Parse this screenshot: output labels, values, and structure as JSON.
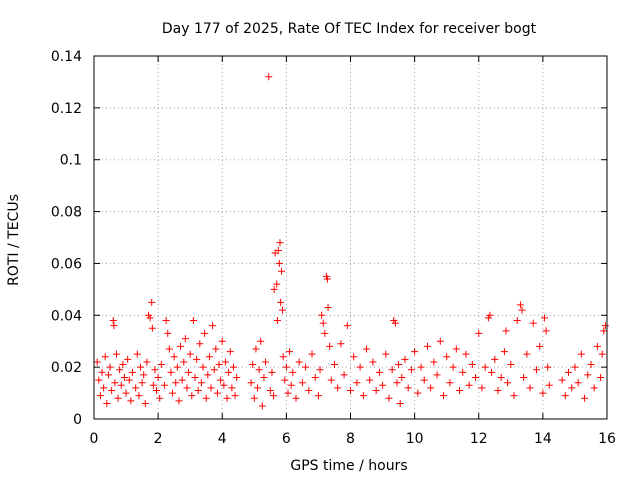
{
  "chart_data": {
    "type": "scatter",
    "title": "Day 177 of 2025, Rate Of TEC Index for receiver bogt",
    "xlabel": "GPS time / hours",
    "ylabel": "ROTI / TECUs",
    "xlim": [
      0,
      16
    ],
    "ylim": [
      0,
      0.14
    ],
    "x_ticks": [
      0,
      2,
      4,
      6,
      8,
      10,
      12,
      14,
      16
    ],
    "x_tick_labels": [
      "0",
      "2",
      "4",
      "6",
      "8",
      "10",
      "12",
      "14",
      "16"
    ],
    "y_ticks": [
      0,
      0.02,
      0.04,
      0.06,
      0.08,
      0.1,
      0.12,
      0.14
    ],
    "y_tick_labels": [
      "0",
      "0.02",
      "0.04",
      "0.06",
      "0.08",
      "0.1",
      "0.12",
      "0.14"
    ],
    "grid": true,
    "marker": "+",
    "color": "#ff0000",
    "series": [
      {
        "name": "ROTI",
        "points": [
          [
            0.1,
            0.022
          ],
          [
            0.15,
            0.015
          ],
          [
            0.2,
            0.009
          ],
          [
            0.25,
            0.018
          ],
          [
            0.3,
            0.012
          ],
          [
            0.35,
            0.024
          ],
          [
            0.4,
            0.006
          ],
          [
            0.45,
            0.017
          ],
          [
            0.5,
            0.02
          ],
          [
            0.55,
            0.011
          ],
          [
            0.6,
            0.038
          ],
          [
            0.62,
            0.036
          ],
          [
            0.65,
            0.014
          ],
          [
            0.7,
            0.025
          ],
          [
            0.75,
            0.008
          ],
          [
            0.8,
            0.019
          ],
          [
            0.85,
            0.013
          ],
          [
            0.9,
            0.021
          ],
          [
            0.95,
            0.016
          ],
          [
            1.0,
            0.01
          ],
          [
            1.05,
            0.023
          ],
          [
            1.1,
            0.015
          ],
          [
            1.15,
            0.007
          ],
          [
            1.2,
            0.018
          ],
          [
            1.3,
            0.012
          ],
          [
            1.35,
            0.025
          ],
          [
            1.4,
            0.009
          ],
          [
            1.45,
            0.02
          ],
          [
            1.5,
            0.014
          ],
          [
            1.55,
            0.017
          ],
          [
            1.6,
            0.006
          ],
          [
            1.65,
            0.022
          ],
          [
            1.7,
            0.04
          ],
          [
            1.75,
            0.039
          ],
          [
            1.8,
            0.045
          ],
          [
            1.82,
            0.035
          ],
          [
            1.85,
            0.013
          ],
          [
            1.9,
            0.019
          ],
          [
            1.95,
            0.011
          ],
          [
            2.0,
            0.016
          ],
          [
            2.05,
            0.008
          ],
          [
            2.1,
            0.021
          ],
          [
            2.2,
            0.013
          ],
          [
            2.25,
            0.038
          ],
          [
            2.3,
            0.033
          ],
          [
            2.35,
            0.027
          ],
          [
            2.4,
            0.018
          ],
          [
            2.45,
            0.01
          ],
          [
            2.5,
            0.024
          ],
          [
            2.55,
            0.014
          ],
          [
            2.6,
            0.02
          ],
          [
            2.65,
            0.007
          ],
          [
            2.7,
            0.028
          ],
          [
            2.75,
            0.015
          ],
          [
            2.8,
            0.022
          ],
          [
            2.85,
            0.031
          ],
          [
            2.9,
            0.012
          ],
          [
            2.95,
            0.018
          ],
          [
            3.0,
            0.025
          ],
          [
            3.05,
            0.009
          ],
          [
            3.1,
            0.038
          ],
          [
            3.15,
            0.016
          ],
          [
            3.2,
            0.023
          ],
          [
            3.25,
            0.011
          ],
          [
            3.3,
            0.029
          ],
          [
            3.35,
            0.014
          ],
          [
            3.4,
            0.02
          ],
          [
            3.45,
            0.033
          ],
          [
            3.5,
            0.008
          ],
          [
            3.55,
            0.017
          ],
          [
            3.6,
            0.024
          ],
          [
            3.65,
            0.012
          ],
          [
            3.7,
            0.036
          ],
          [
            3.75,
            0.019
          ],
          [
            3.8,
            0.027
          ],
          [
            3.85,
            0.01
          ],
          [
            3.9,
            0.021
          ],
          [
            3.95,
            0.015
          ],
          [
            4.0,
            0.03
          ],
          [
            4.05,
            0.013
          ],
          [
            4.1,
            0.022
          ],
          [
            4.15,
            0.008
          ],
          [
            4.2,
            0.018
          ],
          [
            4.25,
            0.026
          ],
          [
            4.3,
            0.012
          ],
          [
            4.35,
            0.02
          ],
          [
            4.4,
            0.009
          ],
          [
            4.45,
            0.016
          ],
          [
            4.9,
            0.014
          ],
          [
            4.95,
            0.021
          ],
          [
            5.0,
            0.008
          ],
          [
            5.05,
            0.027
          ],
          [
            5.1,
            0.012
          ],
          [
            5.15,
            0.019
          ],
          [
            5.2,
            0.03
          ],
          [
            5.25,
            0.005
          ],
          [
            5.3,
            0.016
          ],
          [
            5.35,
            0.022
          ],
          [
            5.45,
            0.132
          ],
          [
            5.5,
            0.011
          ],
          [
            5.55,
            0.018
          ],
          [
            5.6,
            0.009
          ],
          [
            5.62,
            0.05
          ],
          [
            5.65,
            0.064
          ],
          [
            5.7,
            0.052
          ],
          [
            5.72,
            0.038
          ],
          [
            5.75,
            0.065
          ],
          [
            5.78,
            0.06
          ],
          [
            5.8,
            0.068
          ],
          [
            5.82,
            0.045
          ],
          [
            5.85,
            0.057
          ],
          [
            5.88,
            0.042
          ],
          [
            5.9,
            0.024
          ],
          [
            5.95,
            0.015
          ],
          [
            6.0,
            0.02
          ],
          [
            6.05,
            0.01
          ],
          [
            6.1,
            0.026
          ],
          [
            6.15,
            0.013
          ],
          [
            6.2,
            0.018
          ],
          [
            6.3,
            0.008
          ],
          [
            6.4,
            0.022
          ],
          [
            6.5,
            0.014
          ],
          [
            6.6,
            0.02
          ],
          [
            6.7,
            0.011
          ],
          [
            6.8,
            0.025
          ],
          [
            6.9,
            0.016
          ],
          [
            7.0,
            0.009
          ],
          [
            7.05,
            0.019
          ],
          [
            7.1,
            0.04
          ],
          [
            7.15,
            0.037
          ],
          [
            7.2,
            0.033
          ],
          [
            7.25,
            0.055
          ],
          [
            7.28,
            0.054
          ],
          [
            7.3,
            0.043
          ],
          [
            7.35,
            0.028
          ],
          [
            7.4,
            0.015
          ],
          [
            7.5,
            0.021
          ],
          [
            7.6,
            0.012
          ],
          [
            7.7,
            0.029
          ],
          [
            7.8,
            0.017
          ],
          [
            7.9,
            0.036
          ],
          [
            8.0,
            0.011
          ],
          [
            8.1,
            0.024
          ],
          [
            8.2,
            0.014
          ],
          [
            8.3,
            0.02
          ],
          [
            8.4,
            0.009
          ],
          [
            8.5,
            0.027
          ],
          [
            8.6,
            0.015
          ],
          [
            8.7,
            0.022
          ],
          [
            8.8,
            0.011
          ],
          [
            8.9,
            0.018
          ],
          [
            9.0,
            0.013
          ],
          [
            9.1,
            0.025
          ],
          [
            9.2,
            0.008
          ],
          [
            9.3,
            0.019
          ],
          [
            9.35,
            0.038
          ],
          [
            9.4,
            0.037
          ],
          [
            9.45,
            0.014
          ],
          [
            9.5,
            0.021
          ],
          [
            9.55,
            0.006
          ],
          [
            9.6,
            0.016
          ],
          [
            9.7,
            0.023
          ],
          [
            9.8,
            0.012
          ],
          [
            9.9,
            0.019
          ],
          [
            10.0,
            0.026
          ],
          [
            10.1,
            0.01
          ],
          [
            10.2,
            0.02
          ],
          [
            10.3,
            0.015
          ],
          [
            10.4,
            0.028
          ],
          [
            10.5,
            0.012
          ],
          [
            10.6,
            0.022
          ],
          [
            10.7,
            0.017
          ],
          [
            10.8,
            0.03
          ],
          [
            10.9,
            0.009
          ],
          [
            11.0,
            0.024
          ],
          [
            11.1,
            0.014
          ],
          [
            11.2,
            0.02
          ],
          [
            11.3,
            0.027
          ],
          [
            11.4,
            0.011
          ],
          [
            11.5,
            0.018
          ],
          [
            11.6,
            0.025
          ],
          [
            11.7,
            0.013
          ],
          [
            11.8,
            0.021
          ],
          [
            11.9,
            0.016
          ],
          [
            12.0,
            0.033
          ],
          [
            12.1,
            0.012
          ],
          [
            12.2,
            0.02
          ],
          [
            12.3,
            0.039
          ],
          [
            12.35,
            0.04
          ],
          [
            12.4,
            0.018
          ],
          [
            12.5,
            0.023
          ],
          [
            12.6,
            0.011
          ],
          [
            12.7,
            0.016
          ],
          [
            12.8,
            0.026
          ],
          [
            12.85,
            0.034
          ],
          [
            12.9,
            0.014
          ],
          [
            13.0,
            0.021
          ],
          [
            13.1,
            0.009
          ],
          [
            13.2,
            0.038
          ],
          [
            13.3,
            0.044
          ],
          [
            13.35,
            0.042
          ],
          [
            13.4,
            0.016
          ],
          [
            13.5,
            0.025
          ],
          [
            13.6,
            0.012
          ],
          [
            13.7,
            0.037
          ],
          [
            13.8,
            0.019
          ],
          [
            13.9,
            0.028
          ],
          [
            14.0,
            0.01
          ],
          [
            14.05,
            0.039
          ],
          [
            14.1,
            0.034
          ],
          [
            14.15,
            0.02
          ],
          [
            14.2,
            0.013
          ],
          [
            14.6,
            0.015
          ],
          [
            14.7,
            0.009
          ],
          [
            14.8,
            0.018
          ],
          [
            14.9,
            0.012
          ],
          [
            15.0,
            0.02
          ],
          [
            15.1,
            0.014
          ],
          [
            15.2,
            0.025
          ],
          [
            15.3,
            0.008
          ],
          [
            15.4,
            0.017
          ],
          [
            15.5,
            0.021
          ],
          [
            15.6,
            0.012
          ],
          [
            15.7,
            0.028
          ],
          [
            15.8,
            0.016
          ],
          [
            15.85,
            0.025
          ],
          [
            15.9,
            0.034
          ],
          [
            15.95,
            0.036
          ]
        ]
      }
    ]
  }
}
